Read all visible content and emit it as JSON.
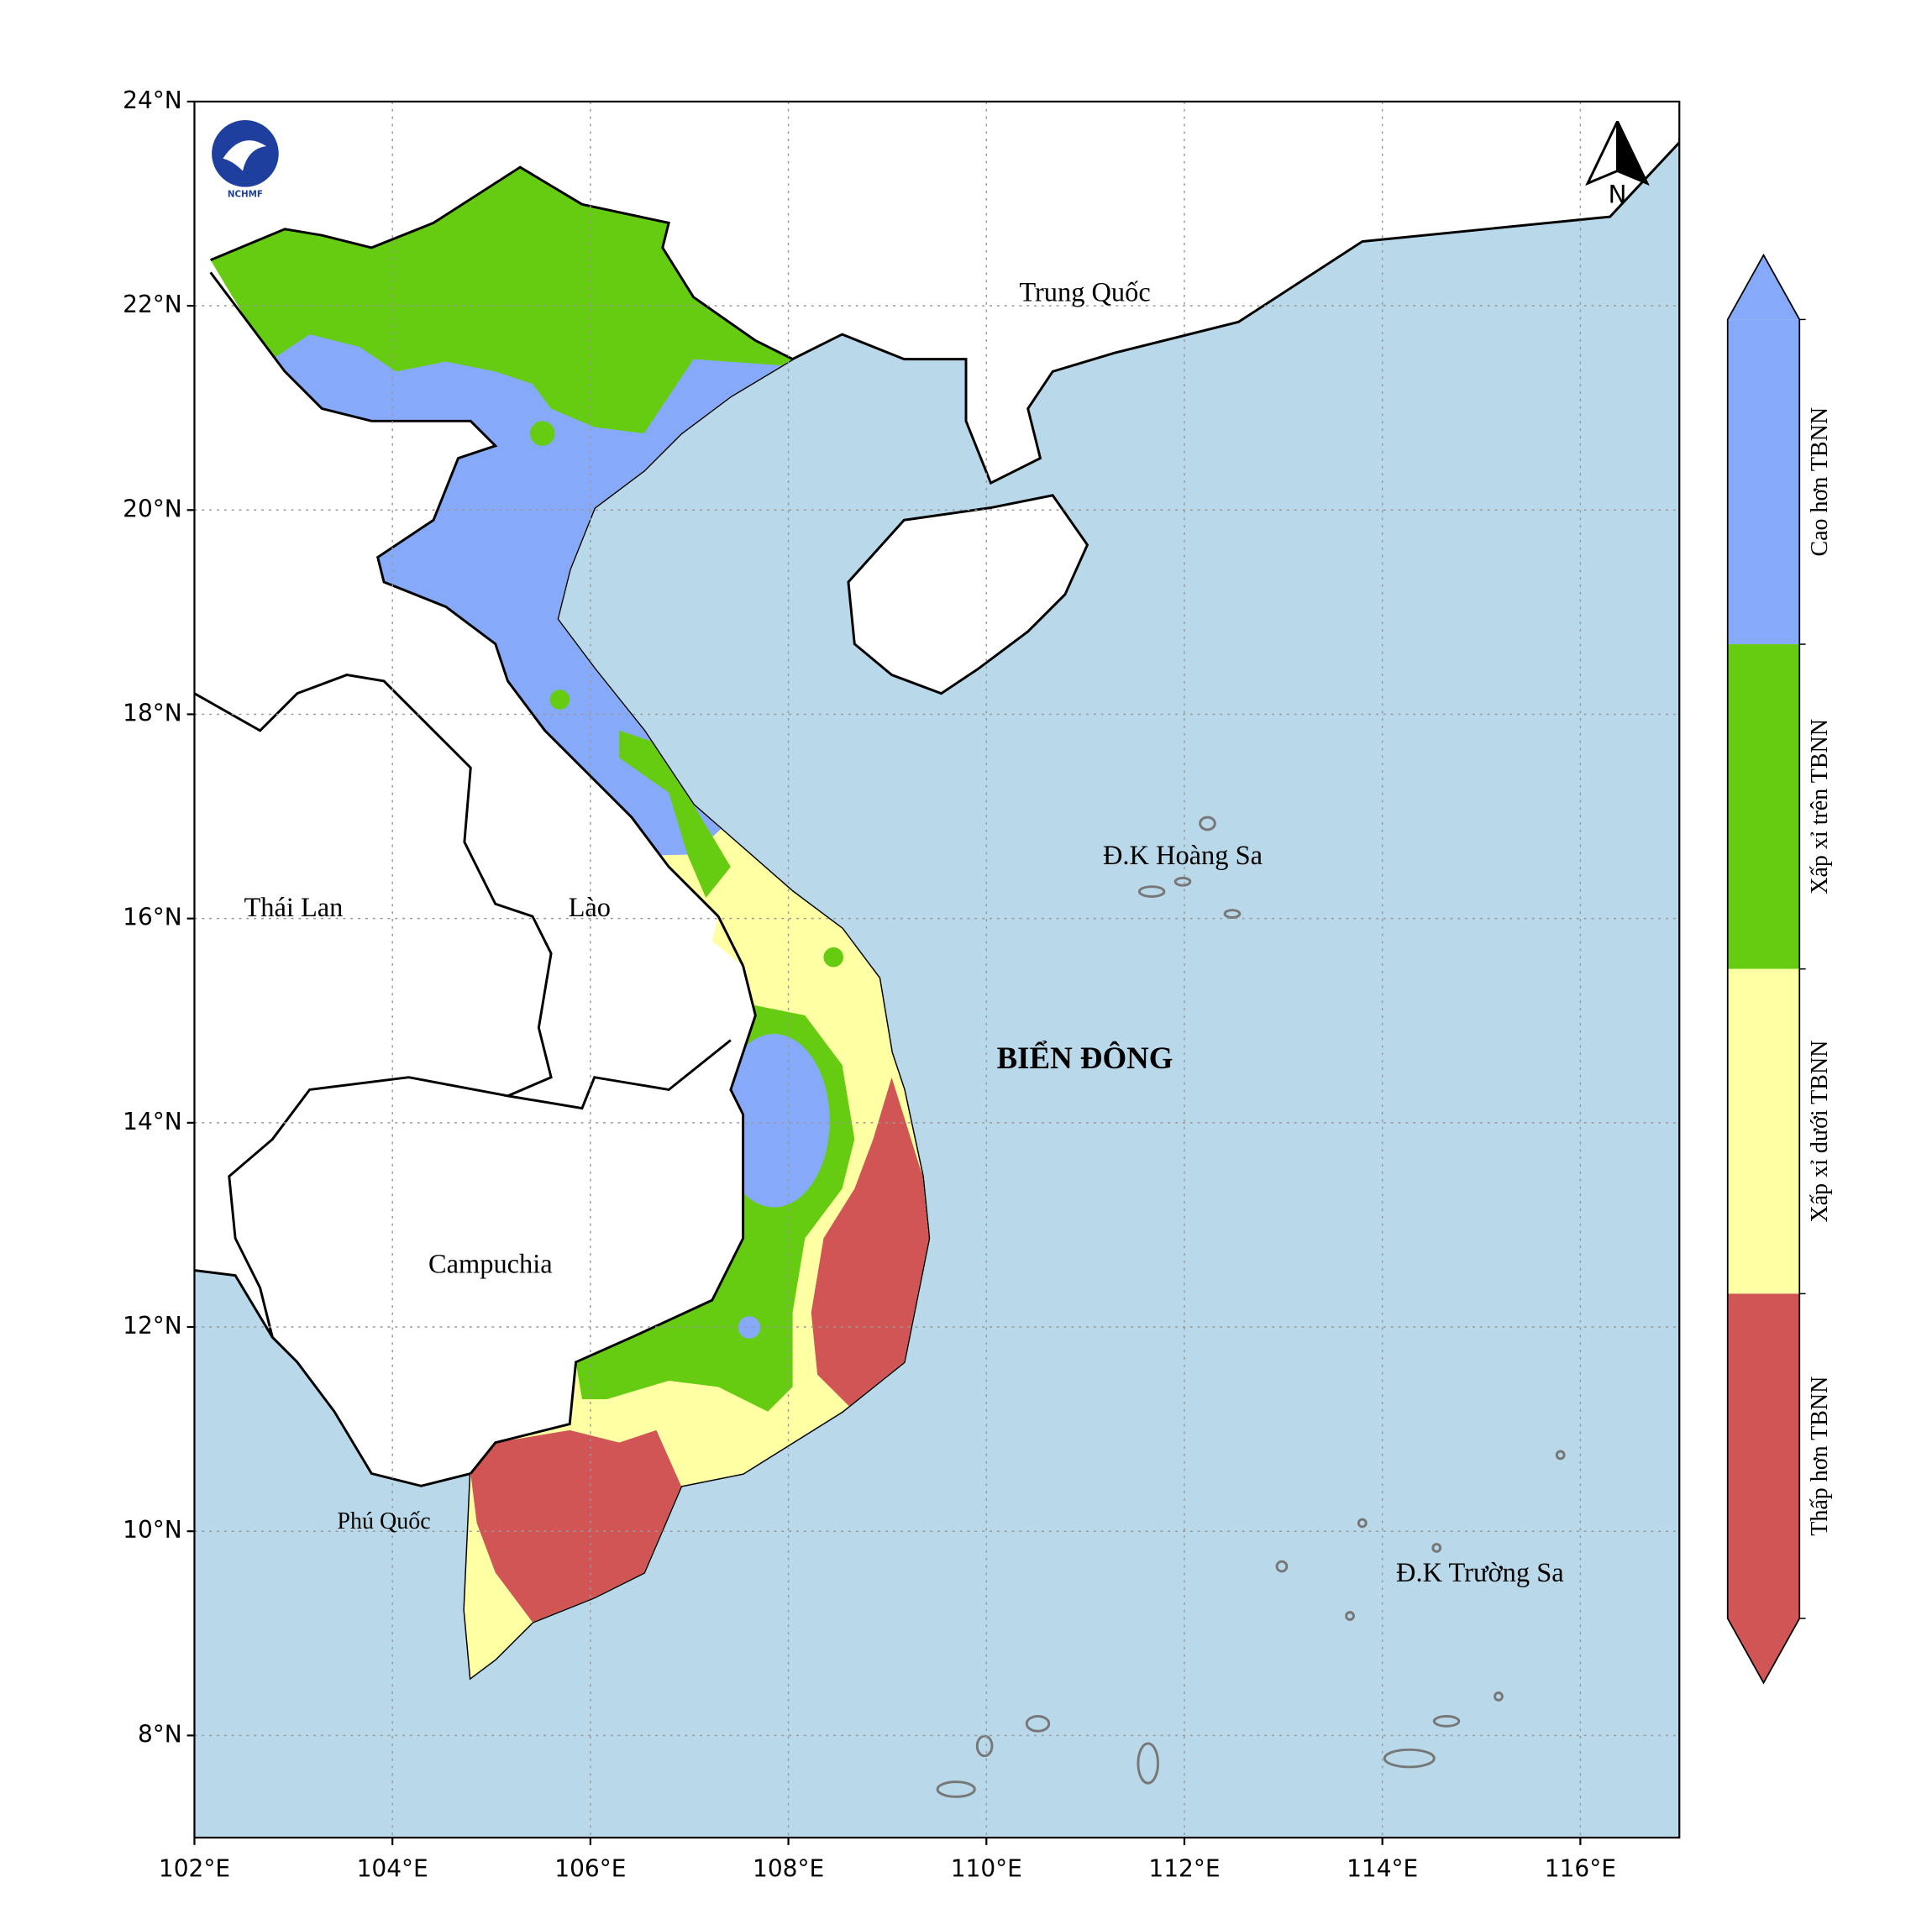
{
  "map": {
    "logo": "NCHMF",
    "north": "N",
    "extent": {
      "lon": [
        102,
        117
      ],
      "lat": [
        7,
        24
      ]
    },
    "lat_ticks": [
      {
        "value": 8,
        "label": "8°N"
      },
      {
        "value": 10,
        "label": "10°N"
      },
      {
        "value": 12,
        "label": "12°N"
      },
      {
        "value": 14,
        "label": "14°N"
      },
      {
        "value": 16,
        "label": "16°N"
      },
      {
        "value": 18,
        "label": "18°N"
      },
      {
        "value": 20,
        "label": "20°N"
      },
      {
        "value": 22,
        "label": "22°N"
      },
      {
        "value": 24,
        "label": "24°N"
      }
    ],
    "lon_ticks": [
      {
        "value": 102,
        "label": "102°E"
      },
      {
        "value": 104,
        "label": "104°E"
      },
      {
        "value": 106,
        "label": "106°E"
      },
      {
        "value": 108,
        "label": "108°E"
      },
      {
        "value": 110,
        "label": "110°E"
      },
      {
        "value": 112,
        "label": "112°E"
      },
      {
        "value": 114,
        "label": "114°E"
      },
      {
        "value": 116,
        "label": "116°E"
      }
    ],
    "places": [
      "Trung Quốc",
      "Thái Lan",
      "Lào",
      "Campuchia",
      "Phú Quốc",
      "Đ.K Hoàng Sa",
      "BIỂN ĐÔNG",
      "Đ.K Trường Sa"
    ],
    "legend": [
      {
        "name": "Cao hơn TBNN",
        "color": "#87a9f9"
      },
      {
        "name": "Xấp xỉ trên TBNN",
        "color": "#66cc11"
      },
      {
        "name": "Xấp xỉ dưới TBNN",
        "color": "#ffffa3"
      },
      {
        "name": "Thấp hơn TBNN",
        "color": "#d25555"
      }
    ]
  }
}
